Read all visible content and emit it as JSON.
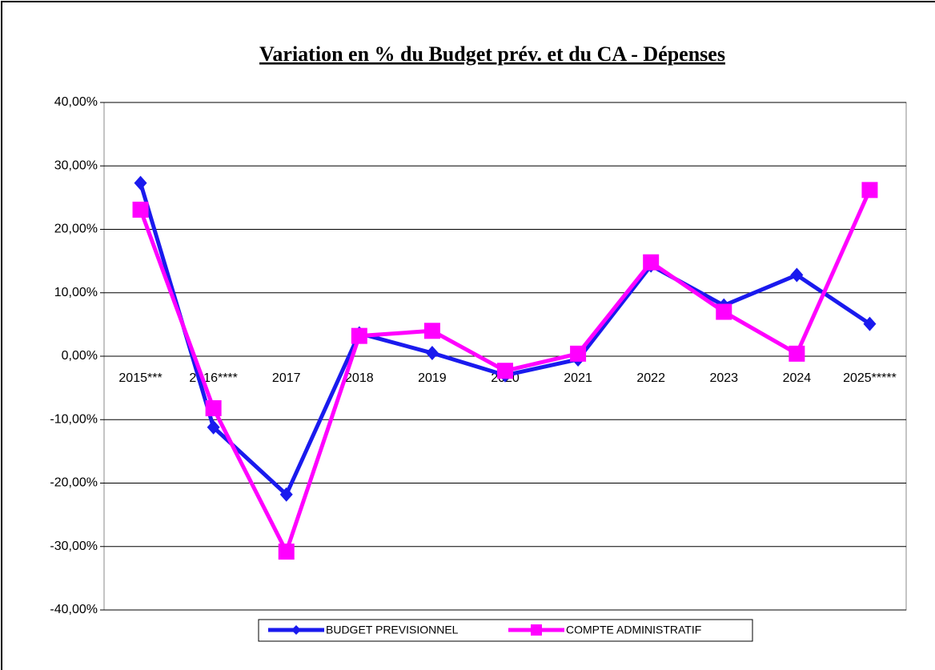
{
  "chart_data": {
    "type": "line",
    "title": "Variation en % du Budget prév. et du CA - Dépenses",
    "categories": [
      "2015***",
      "2016****",
      "2017",
      "2018",
      "2019",
      "2020",
      "2021",
      "2022",
      "2023",
      "2024",
      "2025*****"
    ],
    "series": [
      {
        "name": "BUDGET PREVISIONNEL",
        "color": "#1a1aee",
        "marker": "diamond",
        "values": [
          27.3,
          -11.2,
          -21.8,
          3.6,
          0.5,
          -3.0,
          -0.5,
          14.3,
          8.0,
          12.8,
          5.1
        ]
      },
      {
        "name": "COMPTE ADMINISTRATIF",
        "color": "#ff00ff",
        "marker": "square",
        "values": [
          23.1,
          -8.2,
          -30.8,
          3.2,
          4.0,
          -2.3,
          0.4,
          14.8,
          7.0,
          0.4,
          26.2
        ]
      }
    ],
    "ylim": [
      -40,
      40
    ],
    "yticks": [
      {
        "value": -40,
        "label": "-40,00%"
      },
      {
        "value": -30,
        "label": "-30,00%"
      },
      {
        "value": -20,
        "label": "-20,00%"
      },
      {
        "value": -10,
        "label": "-10,00%"
      },
      {
        "value": 0,
        "label": "0,00%"
      },
      {
        "value": 10,
        "label": "10,00%"
      },
      {
        "value": 20,
        "label": "20,00%"
      },
      {
        "value": 30,
        "label": "30,00%"
      },
      {
        "value": 40,
        "label": "40,00%"
      }
    ],
    "grid": true,
    "legend": "bottom"
  }
}
